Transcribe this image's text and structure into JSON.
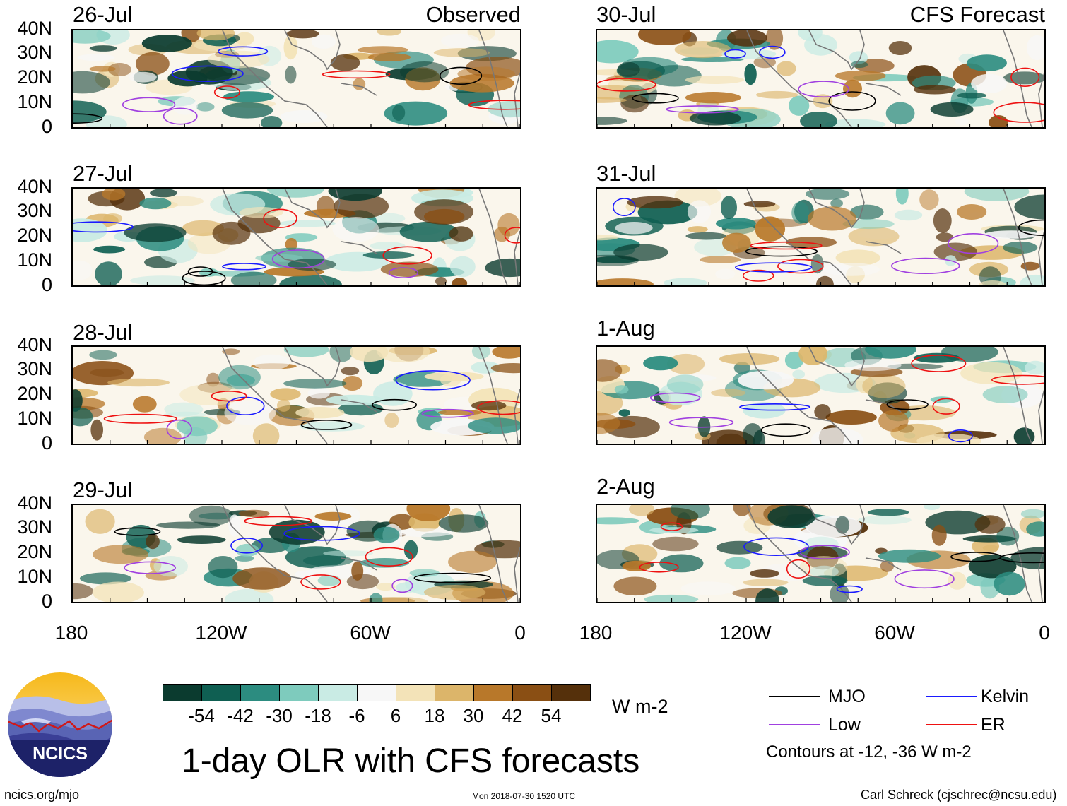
{
  "observed_label": "Observed",
  "forecast_label": "CFS Forecast",
  "observed_dates": [
    "26-Jul",
    "27-Jul",
    "28-Jul",
    "29-Jul"
  ],
  "forecast_dates": [
    "30-Jul",
    "31-Jul",
    "1-Aug",
    "2-Aug"
  ],
  "lat_labels": [
    "40N",
    "30N",
    "20N",
    "10N",
    "0"
  ],
  "lon_labels": [
    "180",
    "120W",
    "60W",
    "0"
  ],
  "colorbar": {
    "labels": [
      "-54",
      "-42",
      "-30",
      "-18",
      "-6",
      "6",
      "18",
      "30",
      "42",
      "54"
    ],
    "colors": [
      "#0b3b2f",
      "#0f5f52",
      "#2c8c80",
      "#7ecbbd",
      "#c9ebe4",
      "#f7f7f7",
      "#f3e3b8",
      "#dcb56a",
      "#b8782a",
      "#8a4f14",
      "#55300b"
    ],
    "units": "W m-2"
  },
  "legend": {
    "items": [
      {
        "label": "MJO",
        "color": "#000000"
      },
      {
        "label": "Kelvin",
        "color": "#1a1aff"
      },
      {
        "label": "Low",
        "color": "#a040e0"
      },
      {
        "label": "ER",
        "color": "#ee1111"
      }
    ],
    "note": "Contours at -12, -36 W m-2"
  },
  "title": "1-day OLR with CFS forecasts",
  "logo_text": "NCICS",
  "footer": {
    "url": "ncics.org/mjo",
    "timestamp": "Mon 2018-07-30 1520 UTC",
    "credit": "Carl Schreck (cjschrec@ncsu.edu)"
  }
}
